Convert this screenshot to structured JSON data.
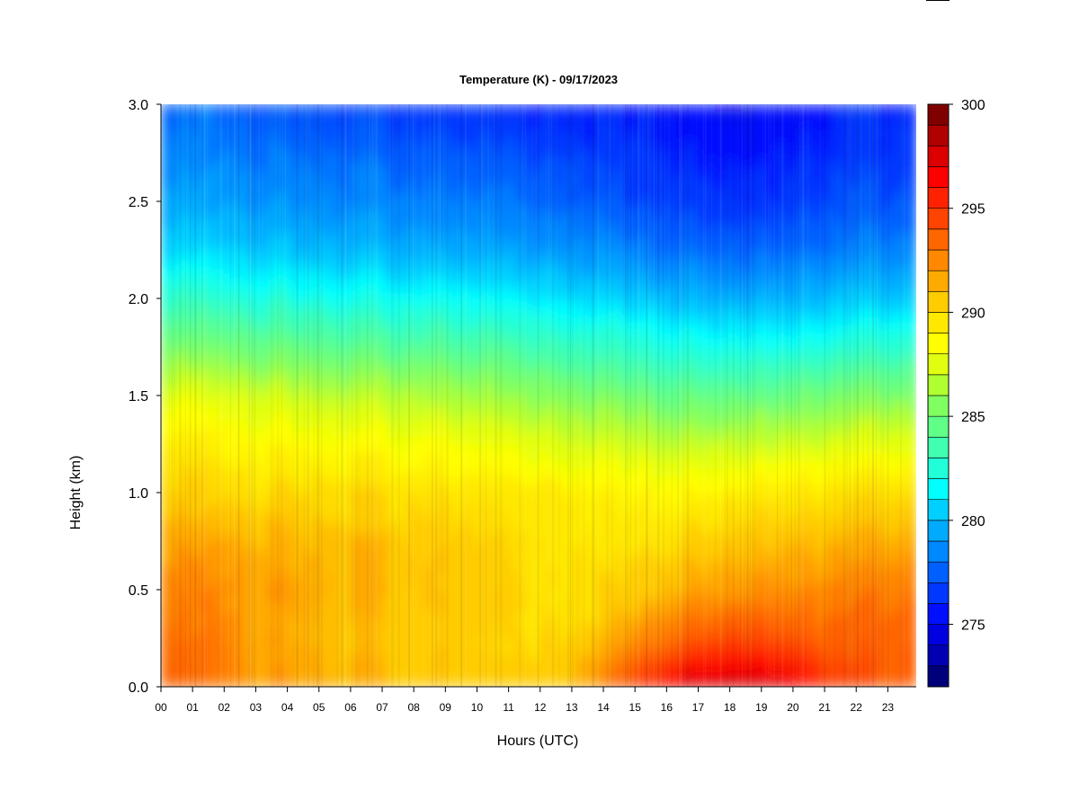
{
  "chart_data": {
    "type": "heatmap",
    "title": "Temperature (K) - 09/17/2023",
    "xlabel": "Hours (UTC)",
    "ylabel": "Height (km)",
    "x_ticks": [
      "00",
      "01",
      "02",
      "03",
      "04",
      "05",
      "06",
      "07",
      "08",
      "09",
      "10",
      "11",
      "12",
      "13",
      "14",
      "15",
      "16",
      "17",
      "18",
      "19",
      "20",
      "21",
      "22",
      "23"
    ],
    "xlim": [
      0,
      23.9
    ],
    "y_ticks": [
      "0.0",
      "0.5",
      "1.0",
      "1.5",
      "2.0",
      "2.5",
      "3.0"
    ],
    "ylim": [
      0,
      3.0
    ],
    "colorbar": {
      "ticks": [
        "275",
        "280",
        "285",
        "290",
        "295",
        "300"
      ],
      "range": [
        272,
        300
      ],
      "levels": 28,
      "colors": [
        "#00007a",
        "#0000b2",
        "#0000e0",
        "#0010ff",
        "#0038ff",
        "#0060ff",
        "#0088ff",
        "#00aaff",
        "#00d0ff",
        "#00ffff",
        "#20ffd8",
        "#40ffb0",
        "#60ff88",
        "#80ff60",
        "#b0ff30",
        "#e0ff10",
        "#ffff00",
        "#ffe800",
        "#ffcc00",
        "#ffaa00",
        "#ff8800",
        "#ff6600",
        "#ff4400",
        "#ff2200",
        "#ff0000",
        "#dd0000",
        "#b00000",
        "#800000"
      ]
    },
    "data": {
      "x": [
        0,
        1,
        2,
        3,
        4,
        5,
        6,
        7,
        8,
        9,
        10,
        11,
        12,
        13,
        14,
        15,
        16,
        17,
        18,
        19,
        20,
        21,
        22,
        23
      ],
      "y": [
        0,
        0.25,
        0.5,
        0.75,
        1.0,
        1.25,
        1.5,
        1.75,
        2.0,
        2.25,
        2.5,
        2.75,
        3.0
      ],
      "z": [
        [
          293.5,
          293.2,
          292.6,
          291.6,
          290.3,
          289.1,
          287.6,
          285.2,
          282.8,
          280.6,
          279.3,
          278.4,
          277.7
        ],
        [
          293.2,
          293.0,
          292.6,
          291.6,
          290.3,
          289.1,
          287.6,
          285.2,
          282.8,
          280.6,
          279.3,
          278.4,
          277.6
        ],
        [
          292.8,
          292.5,
          292.3,
          291.5,
          290.2,
          289.0,
          287.5,
          285.1,
          282.7,
          280.5,
          279.2,
          278.3,
          277.4
        ],
        [
          292.2,
          291.9,
          291.9,
          291.3,
          290.1,
          288.9,
          287.3,
          284.9,
          282.5,
          280.3,
          279.0,
          278.1,
          277.2
        ],
        [
          291.8,
          291.5,
          291.7,
          291.2,
          290.0,
          288.7,
          287.1,
          284.7,
          282.3,
          280.1,
          278.8,
          277.9,
          277.0
        ],
        [
          291.6,
          291.3,
          291.4,
          291.0,
          289.9,
          288.6,
          286.9,
          284.5,
          282.1,
          279.9,
          278.6,
          277.7,
          276.8
        ],
        [
          291.3,
          290.8,
          291.2,
          290.9,
          289.9,
          288.5,
          286.8,
          284.4,
          282.0,
          279.8,
          278.5,
          277.6,
          276.7
        ],
        [
          291.0,
          290.6,
          291.0,
          290.7,
          289.8,
          288.4,
          286.7,
          284.3,
          281.9,
          279.7,
          278.4,
          277.5,
          276.6
        ],
        [
          290.9,
          290.5,
          290.9,
          290.6,
          289.8,
          288.3,
          286.6,
          284.2,
          281.8,
          279.6,
          278.3,
          277.4,
          276.4
        ],
        [
          290.8,
          290.4,
          290.8,
          290.5,
          289.7,
          288.2,
          286.5,
          284.1,
          281.7,
          279.5,
          278.2,
          277.3,
          276.2
        ],
        [
          290.6,
          290.2,
          290.5,
          290.3,
          289.7,
          288.0,
          286.3,
          283.9,
          281.6,
          279.4,
          278.1,
          277.2,
          276.1
        ],
        [
          290.4,
          290.0,
          290.2,
          290.0,
          289.6,
          287.9,
          286.1,
          283.8,
          281.5,
          279.3,
          278.0,
          277.1,
          276.0
        ],
        [
          290.4,
          290.0,
          290.0,
          289.8,
          289.4,
          287.7,
          285.8,
          283.5,
          281.3,
          279.1,
          277.8,
          276.9,
          275.9
        ],
        [
          291.2,
          290.3,
          289.9,
          289.6,
          289.2,
          287.5,
          285.6,
          283.2,
          281.0,
          278.9,
          277.6,
          276.7,
          275.8
        ],
        [
          292.8,
          291.0,
          290.0,
          289.6,
          289.0,
          287.3,
          285.3,
          282.9,
          280.7,
          278.6,
          277.3,
          276.5,
          275.7
        ],
        [
          295.0,
          292.2,
          290.5,
          289.7,
          288.9,
          287.1,
          285.0,
          282.6,
          280.4,
          278.3,
          277.0,
          276.3,
          275.6
        ],
        [
          297.0,
          293.3,
          291.2,
          289.9,
          288.9,
          286.9,
          284.8,
          282.3,
          280.1,
          278.0,
          276.8,
          276.1,
          275.5
        ],
        [
          297.8,
          294.0,
          291.8,
          290.3,
          289.0,
          286.9,
          284.6,
          282.1,
          279.8,
          277.7,
          276.5,
          275.8,
          275.3
        ],
        [
          298.1,
          294.4,
          292.1,
          290.6,
          289.2,
          287.0,
          284.6,
          282.0,
          279.6,
          277.5,
          276.3,
          275.5,
          275.0
        ],
        [
          297.8,
          294.4,
          292.3,
          290.8,
          289.3,
          287.1,
          284.7,
          282.0,
          279.6,
          277.6,
          276.3,
          275.6,
          275.1
        ],
        [
          297.2,
          294.1,
          292.4,
          291.0,
          289.5,
          287.3,
          284.9,
          282.2,
          279.8,
          277.9,
          276.6,
          275.9,
          275.4
        ],
        [
          295.5,
          293.8,
          292.6,
          291.2,
          289.7,
          287.5,
          285.2,
          282.5,
          280.1,
          278.2,
          276.9,
          276.2,
          275.8
        ],
        [
          294.3,
          293.5,
          292.8,
          291.3,
          289.8,
          287.6,
          285.3,
          282.7,
          280.3,
          278.4,
          277.1,
          276.4,
          276.0
        ],
        [
          294.0,
          293.6,
          293.0,
          291.5,
          289.9,
          287.7,
          285.4,
          282.8,
          280.3,
          278.4,
          277.1,
          276.3,
          275.9
        ]
      ]
    }
  }
}
